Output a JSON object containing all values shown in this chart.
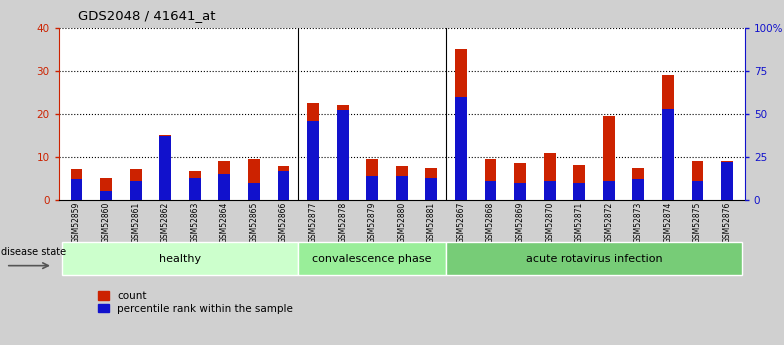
{
  "title": "GDS2048 / 41641_at",
  "samples": [
    "GSM52859",
    "GSM52860",
    "GSM52861",
    "GSM52862",
    "GSM52863",
    "GSM52864",
    "GSM52865",
    "GSM52866",
    "GSM52877",
    "GSM52878",
    "GSM52879",
    "GSM52880",
    "GSM52881",
    "GSM52867",
    "GSM52868",
    "GSM52869",
    "GSM52870",
    "GSM52871",
    "GSM52872",
    "GSM52873",
    "GSM52874",
    "GSM52875",
    "GSM52876"
  ],
  "count_values": [
    7.2,
    5.2,
    7.2,
    15.0,
    6.8,
    9.0,
    9.5,
    8.0,
    22.5,
    22.0,
    9.5,
    8.0,
    7.5,
    35.0,
    9.5,
    8.5,
    11.0,
    8.2,
    19.5,
    7.5,
    29.0,
    9.0,
    9.0
  ],
  "percentile_values_pct": [
    12,
    5,
    11,
    37,
    13,
    15,
    10,
    17,
    46,
    52,
    14,
    14,
    13,
    60,
    11,
    10,
    11,
    10,
    11,
    12,
    53,
    11,
    22
  ],
  "groups": [
    {
      "name": "healthy",
      "start": 0,
      "end": 8,
      "color": "#ccffcc"
    },
    {
      "name": "convalescence phase",
      "start": 8,
      "end": 13,
      "color": "#99ee99"
    },
    {
      "name": "acute rotavirus infection",
      "start": 13,
      "end": 23,
      "color": "#77cc77"
    }
  ],
  "group_dividers": [
    7.5,
    12.5
  ],
  "ylim_left": [
    0,
    40
  ],
  "ylim_right": [
    0,
    100
  ],
  "yticks_left": [
    0,
    10,
    20,
    30,
    40
  ],
  "yticks_right": [
    0,
    25,
    50,
    75,
    100
  ],
  "bar_color_red": "#cc2200",
  "bar_color_blue": "#1111cc",
  "axis_color_left": "#cc2200",
  "axis_color_right": "#1111cc",
  "bg_color": "#d0d0d0",
  "xtick_bg": "#c0c0c0",
  "plot_bg": "#ffffff",
  "legend_count": "count",
  "legend_percentile": "percentile rank within the sample",
  "disease_state_label": "disease state"
}
